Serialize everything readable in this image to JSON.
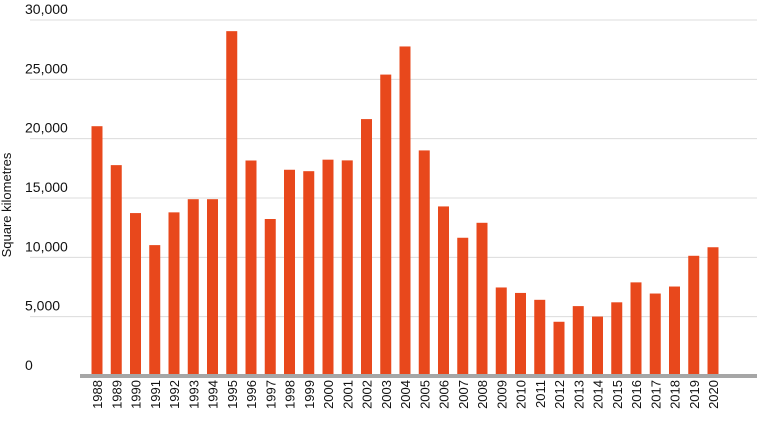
{
  "chart_data": {
    "type": "bar",
    "ylabel": "Square kilometres",
    "ylim": [
      0,
      30000
    ],
    "yticks": [
      0,
      5000,
      10000,
      15000,
      20000,
      25000,
      30000
    ],
    "ytick_labels": [
      "0",
      "5,000",
      "10,000",
      "15,000",
      "20,000",
      "25,000",
      "30,000"
    ],
    "grid": true,
    "categories": [
      "1988",
      "1989",
      "1990",
      "1991",
      "1992",
      "1993",
      "1994",
      "1995",
      "1996",
      "1997",
      "1998",
      "1999",
      "2000",
      "2001",
      "2002",
      "2003",
      "2004",
      "2005",
      "2006",
      "2007",
      "2008",
      "2009",
      "2010",
      "2011",
      "2012",
      "2013",
      "2014",
      "2015",
      "2016",
      "2017",
      "2018",
      "2019",
      "2020"
    ],
    "values": [
      21050,
      17770,
      13730,
      11030,
      13790,
      14900,
      14900,
      29060,
      18160,
      13230,
      17380,
      17260,
      18230,
      18170,
      21650,
      25400,
      27770,
      19010,
      14290,
      11650,
      12910,
      7460,
      7000,
      6420,
      4570,
      5890,
      5010,
      6210,
      7890,
      6950,
      7540,
      10130,
      10850
    ],
    "bar_color": "#e8481c",
    "grid_color": "#dcdcdc",
    "baseline_color": "#a6a6a6"
  }
}
